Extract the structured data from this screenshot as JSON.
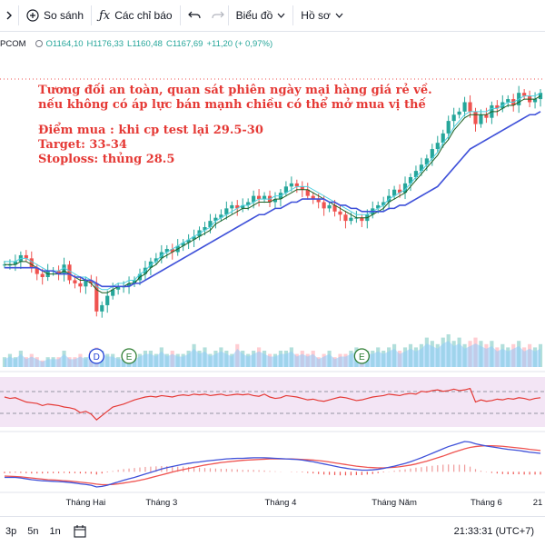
{
  "toolbar": {
    "compare_label": "So sánh",
    "indicators_label": "Các chỉ báo",
    "chart_type_label": "Biểu đồ",
    "profile_label": "Hồ sơ"
  },
  "legend": {
    "symbol": "PCOM",
    "open": "O1164,10",
    "high": "H1176,33",
    "low": "L1160,48",
    "close": "C1167,69",
    "change": "+11,20 (+ 0,97%)"
  },
  "annotation": {
    "line1": "Tương đối an toàn, quan sát phiên ngày mại hàng giá rẻ về.",
    "line2": "nếu không có áp lực bán mạnh chiều có thể mở mua vị thế",
    "line3": "Điểm mua : khi cp test lại 29.5-30",
    "line4": "Target: 33-34",
    "line5": "Stoploss: thủng 28.5"
  },
  "chart_data": {
    "type": "candlestick",
    "x_labels": [
      "Tháng Hai",
      "Tháng 3",
      "Tháng 4",
      "Tháng Năm",
      "Tháng 6",
      "21"
    ],
    "markers": [
      "D",
      "E",
      "E"
    ],
    "closes": [
      48,
      48,
      49,
      51,
      50,
      47,
      45,
      44,
      46,
      46,
      45,
      48,
      43,
      42,
      41,
      43,
      42,
      33,
      35,
      38,
      40,
      41,
      41,
      42,
      43,
      45,
      47,
      49,
      50,
      52,
      53,
      52,
      54,
      55,
      56,
      57,
      59,
      60,
      62,
      63,
      64,
      66,
      67,
      66,
      67,
      68,
      70,
      69,
      70,
      68,
      69,
      71,
      73,
      74,
      73,
      72,
      70,
      69,
      68,
      66,
      67,
      65,
      64,
      62,
      63,
      63,
      62,
      64,
      66,
      67,
      68,
      70,
      72,
      71,
      74,
      76,
      78,
      80,
      82,
      85,
      87,
      90,
      94,
      96,
      97,
      100,
      97,
      93,
      96,
      95,
      99,
      98,
      100,
      101,
      99,
      103,
      102,
      100,
      101,
      103
    ],
    "ma_fast": [
      48,
      48,
      48,
      49,
      49,
      48,
      47,
      46,
      45,
      45,
      45,
      46,
      45,
      44,
      43,
      43,
      42,
      40,
      39,
      39,
      40,
      41,
      41,
      42,
      42,
      44,
      45,
      47,
      48,
      50,
      51,
      52,
      53,
      54,
      55,
      56,
      57,
      58,
      59,
      61,
      62,
      63,
      64,
      65,
      66,
      66,
      67,
      68,
      68,
      68,
      69,
      69,
      70,
      71,
      72,
      72,
      72,
      71,
      70,
      69,
      68,
      67,
      66,
      65,
      64,
      63,
      63,
      63,
      64,
      65,
      66,
      68,
      69,
      70,
      71,
      73,
      75,
      77,
      79,
      81,
      83,
      86,
      88,
      91,
      93,
      95,
      96,
      96,
      96,
      96,
      97,
      97,
      98,
      99,
      99,
      100,
      101,
      101,
      101,
      102
    ],
    "ma_slow": [
      47,
      47,
      47,
      47,
      47,
      47,
      47,
      46,
      46,
      46,
      45,
      45,
      45,
      44,
      44,
      43,
      43,
      42,
      41,
      41,
      41,
      41,
      41,
      41,
      42,
      42,
      43,
      44,
      45,
      46,
      47,
      48,
      49,
      50,
      51,
      52,
      53,
      54,
      55,
      56,
      57,
      58,
      59,
      60,
      61,
      62,
      63,
      64,
      64,
      65,
      66,
      66,
      67,
      68,
      68,
      69,
      69,
      69,
      69,
      69,
      68,
      68,
      67,
      67,
      66,
      66,
      65,
      65,
      65,
      65,
      65,
      66,
      66,
      67,
      67,
      68,
      69,
      70,
      71,
      72,
      73,
      75,
      77,
      79,
      81,
      83,
      85,
      86,
      87,
      88,
      89,
      90,
      91,
      92,
      93,
      94,
      95,
      96,
      96,
      97
    ],
    "volume": [
      3,
      4,
      3,
      5,
      3,
      4,
      3,
      2,
      3,
      3,
      3,
      5,
      3,
      3,
      4,
      3,
      5,
      6,
      5,
      4,
      4,
      3,
      3,
      4,
      3,
      4,
      5,
      5,
      4,
      6,
      4,
      5,
      4,
      4,
      5,
      7,
      5,
      6,
      4,
      5,
      6,
      5,
      4,
      7,
      5,
      4,
      5,
      6,
      5,
      4,
      4,
      5,
      5,
      6,
      4,
      5,
      4,
      5,
      3,
      4,
      5,
      3,
      4,
      4,
      5,
      6,
      4,
      5,
      5,
      6,
      5,
      6,
      7,
      5,
      6,
      7,
      6,
      7,
      9,
      8,
      7,
      9,
      10,
      8,
      9,
      7,
      8,
      9,
      8,
      7,
      8,
      6,
      7,
      6,
      7,
      8,
      6,
      7,
      6,
      7
    ],
    "rsi": [
      62,
      60,
      61,
      58,
      55,
      54,
      53,
      50,
      52,
      51,
      50,
      48,
      47,
      45,
      40,
      42,
      38,
      30,
      36,
      42,
      48,
      50,
      52,
      55,
      58,
      60,
      62,
      63,
      62,
      64,
      63,
      62,
      64,
      65,
      64,
      66,
      65,
      66,
      64,
      65,
      66,
      64,
      65,
      66,
      65,
      66,
      64,
      63,
      66,
      62,
      60,
      61,
      64,
      63,
      62,
      60,
      58,
      59,
      57,
      56,
      58,
      60,
      62,
      61,
      59,
      57,
      58,
      60,
      62,
      63,
      64,
      66,
      65,
      64,
      66,
      67,
      66,
      70,
      69,
      71,
      72,
      70,
      71,
      73,
      71,
      72,
      74,
      55,
      58,
      56,
      57,
      59,
      58,
      60,
      59,
      61,
      60,
      58,
      60,
      61
    ],
    "macd": [
      -2,
      -2,
      -2,
      -2.2,
      -2.5,
      -2.8,
      -3,
      -3.2,
      -3.3,
      -3.4,
      -3.5,
      -3.6,
      -3.8,
      -4,
      -4.3,
      -4.5,
      -4.8,
      -5.4,
      -5.2,
      -4.8,
      -4.2,
      -3.6,
      -3,
      -2.5,
      -2,
      -1.4,
      -0.8,
      -0.2,
      0.4,
      1,
      1.5,
      1.9,
      2.3,
      2.7,
      3,
      3.3,
      3.5,
      3.8,
      4,
      4.2,
      4.4,
      4.6,
      4.7,
      4.8,
      4.8,
      4.9,
      5,
      5,
      5,
      4.9,
      4.8,
      4.7,
      4.6,
      4.5,
      4.4,
      4.2,
      3.9,
      3.6,
      3.2,
      2.8,
      2.4,
      2,
      1.6,
      1.3,
      1,
      0.8,
      0.6,
      0.6,
      0.7,
      0.9,
      1.2,
      1.6,
      2,
      2.5,
      3,
      3.6,
      4.3,
      5,
      5.8,
      6.6,
      7.4,
      8.2,
      9,
      9.6,
      10.2,
      10.8,
      10.6,
      10,
      9.6,
      9.2,
      8.9,
      8.6,
      8.3,
      8,
      7.8,
      7.6,
      7.3,
      7,
      6.8,
      6.6
    ],
    "signal": [
      -1.5,
      -1.6,
      -1.7,
      -1.8,
      -2,
      -2.2,
      -2.4,
      -2.6,
      -2.8,
      -2.9,
      -3,
      -3.2,
      -3.3,
      -3.5,
      -3.7,
      -3.9,
      -4.1,
      -4.4,
      -4.6,
      -4.6,
      -4.5,
      -4.3,
      -4,
      -3.7,
      -3.4,
      -3,
      -2.6,
      -2.1,
      -1.6,
      -1.1,
      -0.6,
      -0.1,
      0.4,
      0.8,
      1.2,
      1.6,
      2,
      2.4,
      2.7,
      3,
      3.3,
      3.5,
      3.7,
      3.9,
      4.1,
      4.2,
      4.3,
      4.4,
      4.5,
      4.6,
      4.6,
      4.6,
      4.6,
      4.6,
      4.5,
      4.4,
      4.3,
      4.2,
      4,
      3.8,
      3.5,
      3.2,
      2.9,
      2.6,
      2.3,
      2,
      1.8,
      1.6,
      1.5,
      1.4,
      1.4,
      1.5,
      1.6,
      1.8,
      2.1,
      2.4,
      2.8,
      3.3,
      3.8,
      4.4,
      5,
      5.6,
      6.3,
      7,
      7.6,
      8.2,
      8.7,
      9,
      9.2,
      9.3,
      9.3,
      9.2,
      9.1,
      8.9,
      8.7,
      8.5,
      8.3,
      8,
      7.8,
      7.6
    ]
  },
  "bottom": {
    "tf_1": "3p",
    "tf_2": "5n",
    "tf_3": "1n",
    "clock": "21:33:31 (UTC+7)"
  },
  "colors": {
    "up": "#26a69a",
    "down": "#ef5350",
    "ma_fast": "#1b5e20",
    "ma_fast2": "#4dd0e1",
    "ma_slow": "#3f51d9",
    "volume": "#90caf9",
    "rsi": "#e53935",
    "macd": "#3f51d9",
    "signal": "#ef5350"
  }
}
